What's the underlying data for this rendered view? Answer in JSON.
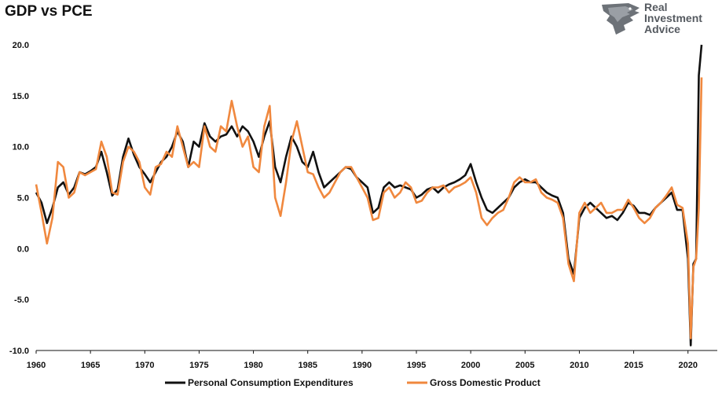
{
  "title": "GDP vs PCE",
  "logo": {
    "line1": "Real",
    "line2": "Investment",
    "line3": "Advice"
  },
  "chart_data": {
    "type": "line",
    "title": "GDP vs PCE",
    "xlabel": "",
    "ylabel": "",
    "xlim": [
      1960,
      2021.25
    ],
    "ylim": [
      -10,
      20
    ],
    "x_ticks": [
      1960,
      1965,
      1970,
      1975,
      1980,
      1985,
      1990,
      1995,
      2000,
      2005,
      2010,
      2015,
      2020
    ],
    "y_ticks": [
      20,
      15,
      10,
      5,
      0,
      -5,
      -10
    ],
    "y_tick_labels": [
      "20.0",
      "15.0",
      "10.0",
      "5.0",
      "0.0",
      "-5.0",
      "-10.0"
    ],
    "grid": false,
    "legend_position": "bottom",
    "series": [
      {
        "name": "Personal Consumption Expenditures",
        "color": "#111111",
        "points": [
          [
            1960,
            5.5
          ],
          [
            1960.5,
            4.5
          ],
          [
            1961,
            2.5
          ],
          [
            1961.5,
            4.0
          ],
          [
            1962,
            6.0
          ],
          [
            1962.5,
            6.5
          ],
          [
            1963,
            5.3
          ],
          [
            1963.5,
            6.0
          ],
          [
            1964,
            7.5
          ],
          [
            1964.5,
            7.3
          ],
          [
            1965,
            7.6
          ],
          [
            1965.5,
            8.0
          ],
          [
            1966,
            9.5
          ],
          [
            1966.5,
            7.5
          ],
          [
            1967,
            5.2
          ],
          [
            1967.5,
            5.8
          ],
          [
            1968,
            9.0
          ],
          [
            1968.5,
            10.8
          ],
          [
            1969,
            9.2
          ],
          [
            1969.5,
            8.0
          ],
          [
            1970,
            7.3
          ],
          [
            1970.5,
            6.5
          ],
          [
            1971,
            7.5
          ],
          [
            1971.5,
            8.5
          ],
          [
            1972,
            9.0
          ],
          [
            1972.5,
            10.0
          ],
          [
            1973,
            11.5
          ],
          [
            1973.5,
            10.5
          ],
          [
            1974,
            8.0
          ],
          [
            1974.5,
            10.5
          ],
          [
            1975,
            10.0
          ],
          [
            1975.5,
            12.3
          ],
          [
            1976,
            11.0
          ],
          [
            1976.5,
            10.5
          ],
          [
            1977,
            11.0
          ],
          [
            1977.5,
            11.2
          ],
          [
            1978,
            12.0
          ],
          [
            1978.5,
            11.0
          ],
          [
            1979,
            12.0
          ],
          [
            1979.5,
            11.5
          ],
          [
            1980,
            10.5
          ],
          [
            1980.5,
            9.0
          ],
          [
            1981,
            11.0
          ],
          [
            1981.5,
            12.5
          ],
          [
            1982,
            8.0
          ],
          [
            1982.5,
            6.5
          ],
          [
            1983,
            9.0
          ],
          [
            1983.5,
            11.0
          ],
          [
            1984,
            10.0
          ],
          [
            1984.5,
            8.5
          ],
          [
            1985,
            8.0
          ],
          [
            1985.5,
            9.5
          ],
          [
            1986,
            7.5
          ],
          [
            1986.5,
            6.0
          ],
          [
            1987,
            6.5
          ],
          [
            1987.5,
            7.0
          ],
          [
            1988,
            7.5
          ],
          [
            1988.5,
            8.0
          ],
          [
            1989,
            7.8
          ],
          [
            1989.5,
            7.0
          ],
          [
            1990,
            6.5
          ],
          [
            1990.5,
            6.0
          ],
          [
            1991,
            3.5
          ],
          [
            1991.5,
            4.0
          ],
          [
            1992,
            6.0
          ],
          [
            1992.5,
            6.5
          ],
          [
            1993,
            6.0
          ],
          [
            1993.5,
            6.2
          ],
          [
            1994,
            6.0
          ],
          [
            1994.5,
            5.8
          ],
          [
            1995,
            5.0
          ],
          [
            1995.5,
            5.3
          ],
          [
            1996,
            5.8
          ],
          [
            1996.5,
            6.0
          ],
          [
            1997,
            5.5
          ],
          [
            1997.5,
            6.0
          ],
          [
            1998,
            6.3
          ],
          [
            1998.5,
            6.5
          ],
          [
            1999,
            6.8
          ],
          [
            1999.5,
            7.2
          ],
          [
            2000,
            8.3
          ],
          [
            2000.5,
            6.5
          ],
          [
            2001,
            5.0
          ],
          [
            2001.5,
            3.8
          ],
          [
            2002,
            3.5
          ],
          [
            2002.5,
            4.0
          ],
          [
            2003,
            4.5
          ],
          [
            2003.5,
            5.0
          ],
          [
            2004,
            6.0
          ],
          [
            2004.5,
            6.5
          ],
          [
            2005,
            6.8
          ],
          [
            2005.5,
            6.5
          ],
          [
            2006,
            6.5
          ],
          [
            2006.5,
            6.0
          ],
          [
            2007,
            5.5
          ],
          [
            2007.5,
            5.2
          ],
          [
            2008,
            5.0
          ],
          [
            2008.5,
            3.5
          ],
          [
            2009,
            -1.0
          ],
          [
            2009.5,
            -2.5
          ],
          [
            2010,
            3.0
          ],
          [
            2010.5,
            4.0
          ],
          [
            2011,
            4.5
          ],
          [
            2011.5,
            4.0
          ],
          [
            2012,
            3.5
          ],
          [
            2012.5,
            3.0
          ],
          [
            2013,
            3.2
          ],
          [
            2013.5,
            2.8
          ],
          [
            2014,
            3.5
          ],
          [
            2014.5,
            4.5
          ],
          [
            2015,
            4.2
          ],
          [
            2015.5,
            3.5
          ],
          [
            2016,
            3.5
          ],
          [
            2016.5,
            3.3
          ],
          [
            2017,
            4.0
          ],
          [
            2017.5,
            4.5
          ],
          [
            2018,
            5.0
          ],
          [
            2018.5,
            5.5
          ],
          [
            2019,
            3.8
          ],
          [
            2019.5,
            3.8
          ],
          [
            2020,
            -1.0
          ],
          [
            2020.25,
            -9.5
          ],
          [
            2020.5,
            -1.5
          ],
          [
            2020.75,
            -1.0
          ],
          [
            2021,
            17.0
          ],
          [
            2021.25,
            20.0
          ]
        ]
      },
      {
        "name": "Gross Domestic Product",
        "color": "#f0883e",
        "points": [
          [
            1960,
            6.3
          ],
          [
            1960.5,
            3.5
          ],
          [
            1961,
            0.5
          ],
          [
            1961.5,
            3.0
          ],
          [
            1962,
            8.5
          ],
          [
            1962.5,
            8.0
          ],
          [
            1963,
            5.0
          ],
          [
            1963.5,
            5.5
          ],
          [
            1964,
            7.5
          ],
          [
            1964.5,
            7.2
          ],
          [
            1965,
            7.5
          ],
          [
            1965.5,
            7.8
          ],
          [
            1966,
            10.5
          ],
          [
            1966.5,
            9.0
          ],
          [
            1967,
            5.5
          ],
          [
            1967.5,
            5.3
          ],
          [
            1968,
            8.5
          ],
          [
            1968.5,
            10.0
          ],
          [
            1969,
            9.5
          ],
          [
            1969.5,
            8.5
          ],
          [
            1970,
            6.0
          ],
          [
            1970.5,
            5.3
          ],
          [
            1971,
            8.0
          ],
          [
            1971.5,
            8.3
          ],
          [
            1972,
            9.5
          ],
          [
            1972.5,
            9.0
          ],
          [
            1973,
            12.0
          ],
          [
            1973.5,
            10.0
          ],
          [
            1974,
            8.0
          ],
          [
            1974.5,
            8.5
          ],
          [
            1975,
            8.0
          ],
          [
            1975.5,
            12.0
          ],
          [
            1976,
            10.0
          ],
          [
            1976.5,
            9.5
          ],
          [
            1977,
            12.0
          ],
          [
            1977.5,
            11.5
          ],
          [
            1978,
            14.5
          ],
          [
            1978.5,
            12.0
          ],
          [
            1979,
            10.0
          ],
          [
            1979.5,
            11.0
          ],
          [
            1980,
            8.0
          ],
          [
            1980.5,
            7.5
          ],
          [
            1981,
            12.0
          ],
          [
            1981.5,
            14.0
          ],
          [
            1982,
            5.0
          ],
          [
            1982.5,
            3.2
          ],
          [
            1983,
            6.5
          ],
          [
            1983.5,
            10.5
          ],
          [
            1984,
            12.5
          ],
          [
            1984.5,
            10.0
          ],
          [
            1985,
            7.5
          ],
          [
            1985.5,
            7.3
          ],
          [
            1986,
            6.0
          ],
          [
            1986.5,
            5.0
          ],
          [
            1987,
            5.5
          ],
          [
            1987.5,
            6.5
          ],
          [
            1988,
            7.5
          ],
          [
            1988.5,
            8.0
          ],
          [
            1989,
            8.0
          ],
          [
            1989.5,
            7.0
          ],
          [
            1990,
            6.0
          ],
          [
            1990.5,
            5.0
          ],
          [
            1991,
            2.8
          ],
          [
            1991.5,
            3.0
          ],
          [
            1992,
            5.5
          ],
          [
            1992.5,
            6.0
          ],
          [
            1993,
            5.0
          ],
          [
            1993.5,
            5.5
          ],
          [
            1994,
            6.5
          ],
          [
            1994.5,
            6.0
          ],
          [
            1995,
            4.5
          ],
          [
            1995.5,
            4.7
          ],
          [
            1996,
            5.5
          ],
          [
            1996.5,
            6.0
          ],
          [
            1997,
            6.0
          ],
          [
            1997.5,
            6.2
          ],
          [
            1998,
            5.5
          ],
          [
            1998.5,
            6.0
          ],
          [
            1999,
            6.2
          ],
          [
            1999.5,
            6.5
          ],
          [
            2000,
            7.0
          ],
          [
            2000.5,
            5.5
          ],
          [
            2001,
            3.0
          ],
          [
            2001.5,
            2.3
          ],
          [
            2002,
            3.0
          ],
          [
            2002.5,
            3.5
          ],
          [
            2003,
            3.8
          ],
          [
            2003.5,
            5.0
          ],
          [
            2004,
            6.5
          ],
          [
            2004.5,
            7.0
          ],
          [
            2005,
            6.5
          ],
          [
            2005.5,
            6.5
          ],
          [
            2006,
            6.8
          ],
          [
            2006.5,
            5.5
          ],
          [
            2007,
            5.0
          ],
          [
            2007.5,
            4.8
          ],
          [
            2008,
            4.5
          ],
          [
            2008.5,
            3.0
          ],
          [
            2009,
            -1.5
          ],
          [
            2009.5,
            -3.2
          ],
          [
            2010,
            3.5
          ],
          [
            2010.5,
            4.5
          ],
          [
            2011,
            3.5
          ],
          [
            2011.5,
            4.0
          ],
          [
            2012,
            4.5
          ],
          [
            2012.5,
            3.5
          ],
          [
            2013,
            3.5
          ],
          [
            2013.5,
            3.8
          ],
          [
            2014,
            3.8
          ],
          [
            2014.5,
            4.8
          ],
          [
            2015,
            4.0
          ],
          [
            2015.5,
            3.0
          ],
          [
            2016,
            2.5
          ],
          [
            2016.5,
            3.0
          ],
          [
            2017,
            4.0
          ],
          [
            2017.5,
            4.5
          ],
          [
            2018,
            5.2
          ],
          [
            2018.5,
            6.0
          ],
          [
            2019,
            4.3
          ],
          [
            2019.5,
            4.0
          ],
          [
            2020,
            0.5
          ],
          [
            2020.25,
            -8.8
          ],
          [
            2020.5,
            -1.8
          ],
          [
            2020.75,
            -1.0
          ],
          [
            2021,
            4.0
          ],
          [
            2021.25,
            16.8
          ]
        ]
      }
    ]
  }
}
